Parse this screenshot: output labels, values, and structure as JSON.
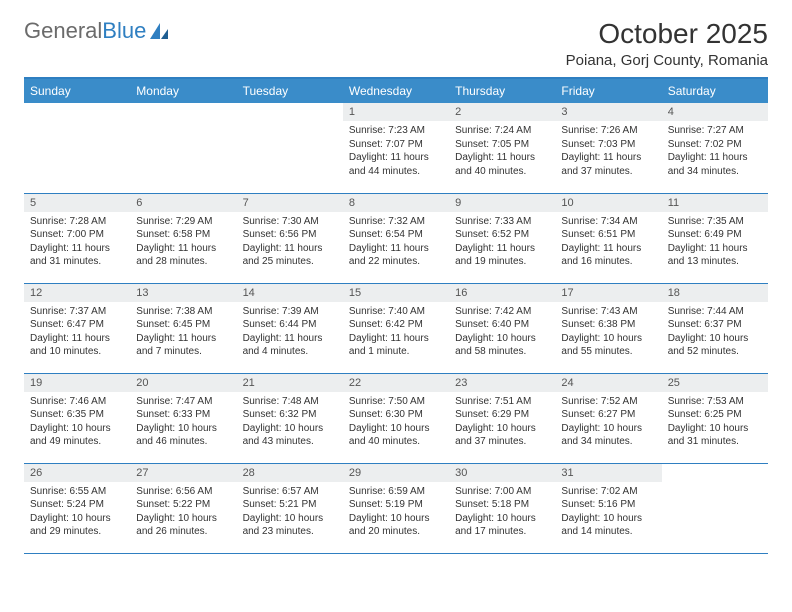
{
  "brand": {
    "part1": "General",
    "part2": "Blue"
  },
  "title": "October 2025",
  "location": "Poiana, Gorj County, Romania",
  "colors": {
    "header_bg": "#3a8cc9",
    "header_text": "#ffffff",
    "border": "#2f7fc1",
    "daynum_bg": "#eceeef",
    "text": "#333333",
    "logo_gray": "#6b6b6b",
    "logo_blue": "#2f7fc1",
    "page_bg": "#ffffff"
  },
  "weekdays": [
    "Sunday",
    "Monday",
    "Tuesday",
    "Wednesday",
    "Thursday",
    "Friday",
    "Saturday"
  ],
  "weeks": [
    [
      {
        "day": "",
        "sunrise": "",
        "sunset": "",
        "daylight": ""
      },
      {
        "day": "",
        "sunrise": "",
        "sunset": "",
        "daylight": ""
      },
      {
        "day": "",
        "sunrise": "",
        "sunset": "",
        "daylight": ""
      },
      {
        "day": "1",
        "sunrise": "Sunrise: 7:23 AM",
        "sunset": "Sunset: 7:07 PM",
        "daylight": "Daylight: 11 hours and 44 minutes."
      },
      {
        "day": "2",
        "sunrise": "Sunrise: 7:24 AM",
        "sunset": "Sunset: 7:05 PM",
        "daylight": "Daylight: 11 hours and 40 minutes."
      },
      {
        "day": "3",
        "sunrise": "Sunrise: 7:26 AM",
        "sunset": "Sunset: 7:03 PM",
        "daylight": "Daylight: 11 hours and 37 minutes."
      },
      {
        "day": "4",
        "sunrise": "Sunrise: 7:27 AM",
        "sunset": "Sunset: 7:02 PM",
        "daylight": "Daylight: 11 hours and 34 minutes."
      }
    ],
    [
      {
        "day": "5",
        "sunrise": "Sunrise: 7:28 AM",
        "sunset": "Sunset: 7:00 PM",
        "daylight": "Daylight: 11 hours and 31 minutes."
      },
      {
        "day": "6",
        "sunrise": "Sunrise: 7:29 AM",
        "sunset": "Sunset: 6:58 PM",
        "daylight": "Daylight: 11 hours and 28 minutes."
      },
      {
        "day": "7",
        "sunrise": "Sunrise: 7:30 AM",
        "sunset": "Sunset: 6:56 PM",
        "daylight": "Daylight: 11 hours and 25 minutes."
      },
      {
        "day": "8",
        "sunrise": "Sunrise: 7:32 AM",
        "sunset": "Sunset: 6:54 PM",
        "daylight": "Daylight: 11 hours and 22 minutes."
      },
      {
        "day": "9",
        "sunrise": "Sunrise: 7:33 AM",
        "sunset": "Sunset: 6:52 PM",
        "daylight": "Daylight: 11 hours and 19 minutes."
      },
      {
        "day": "10",
        "sunrise": "Sunrise: 7:34 AM",
        "sunset": "Sunset: 6:51 PM",
        "daylight": "Daylight: 11 hours and 16 minutes."
      },
      {
        "day": "11",
        "sunrise": "Sunrise: 7:35 AM",
        "sunset": "Sunset: 6:49 PM",
        "daylight": "Daylight: 11 hours and 13 minutes."
      }
    ],
    [
      {
        "day": "12",
        "sunrise": "Sunrise: 7:37 AM",
        "sunset": "Sunset: 6:47 PM",
        "daylight": "Daylight: 11 hours and 10 minutes."
      },
      {
        "day": "13",
        "sunrise": "Sunrise: 7:38 AM",
        "sunset": "Sunset: 6:45 PM",
        "daylight": "Daylight: 11 hours and 7 minutes."
      },
      {
        "day": "14",
        "sunrise": "Sunrise: 7:39 AM",
        "sunset": "Sunset: 6:44 PM",
        "daylight": "Daylight: 11 hours and 4 minutes."
      },
      {
        "day": "15",
        "sunrise": "Sunrise: 7:40 AM",
        "sunset": "Sunset: 6:42 PM",
        "daylight": "Daylight: 11 hours and 1 minute."
      },
      {
        "day": "16",
        "sunrise": "Sunrise: 7:42 AM",
        "sunset": "Sunset: 6:40 PM",
        "daylight": "Daylight: 10 hours and 58 minutes."
      },
      {
        "day": "17",
        "sunrise": "Sunrise: 7:43 AM",
        "sunset": "Sunset: 6:38 PM",
        "daylight": "Daylight: 10 hours and 55 minutes."
      },
      {
        "day": "18",
        "sunrise": "Sunrise: 7:44 AM",
        "sunset": "Sunset: 6:37 PM",
        "daylight": "Daylight: 10 hours and 52 minutes."
      }
    ],
    [
      {
        "day": "19",
        "sunrise": "Sunrise: 7:46 AM",
        "sunset": "Sunset: 6:35 PM",
        "daylight": "Daylight: 10 hours and 49 minutes."
      },
      {
        "day": "20",
        "sunrise": "Sunrise: 7:47 AM",
        "sunset": "Sunset: 6:33 PM",
        "daylight": "Daylight: 10 hours and 46 minutes."
      },
      {
        "day": "21",
        "sunrise": "Sunrise: 7:48 AM",
        "sunset": "Sunset: 6:32 PM",
        "daylight": "Daylight: 10 hours and 43 minutes."
      },
      {
        "day": "22",
        "sunrise": "Sunrise: 7:50 AM",
        "sunset": "Sunset: 6:30 PM",
        "daylight": "Daylight: 10 hours and 40 minutes."
      },
      {
        "day": "23",
        "sunrise": "Sunrise: 7:51 AM",
        "sunset": "Sunset: 6:29 PM",
        "daylight": "Daylight: 10 hours and 37 minutes."
      },
      {
        "day": "24",
        "sunrise": "Sunrise: 7:52 AM",
        "sunset": "Sunset: 6:27 PM",
        "daylight": "Daylight: 10 hours and 34 minutes."
      },
      {
        "day": "25",
        "sunrise": "Sunrise: 7:53 AM",
        "sunset": "Sunset: 6:25 PM",
        "daylight": "Daylight: 10 hours and 31 minutes."
      }
    ],
    [
      {
        "day": "26",
        "sunrise": "Sunrise: 6:55 AM",
        "sunset": "Sunset: 5:24 PM",
        "daylight": "Daylight: 10 hours and 29 minutes."
      },
      {
        "day": "27",
        "sunrise": "Sunrise: 6:56 AM",
        "sunset": "Sunset: 5:22 PM",
        "daylight": "Daylight: 10 hours and 26 minutes."
      },
      {
        "day": "28",
        "sunrise": "Sunrise: 6:57 AM",
        "sunset": "Sunset: 5:21 PM",
        "daylight": "Daylight: 10 hours and 23 minutes."
      },
      {
        "day": "29",
        "sunrise": "Sunrise: 6:59 AM",
        "sunset": "Sunset: 5:19 PM",
        "daylight": "Daylight: 10 hours and 20 minutes."
      },
      {
        "day": "30",
        "sunrise": "Sunrise: 7:00 AM",
        "sunset": "Sunset: 5:18 PM",
        "daylight": "Daylight: 10 hours and 17 minutes."
      },
      {
        "day": "31",
        "sunrise": "Sunrise: 7:02 AM",
        "sunset": "Sunset: 5:16 PM",
        "daylight": "Daylight: 10 hours and 14 minutes."
      },
      {
        "day": "",
        "sunrise": "",
        "sunset": "",
        "daylight": ""
      }
    ]
  ]
}
